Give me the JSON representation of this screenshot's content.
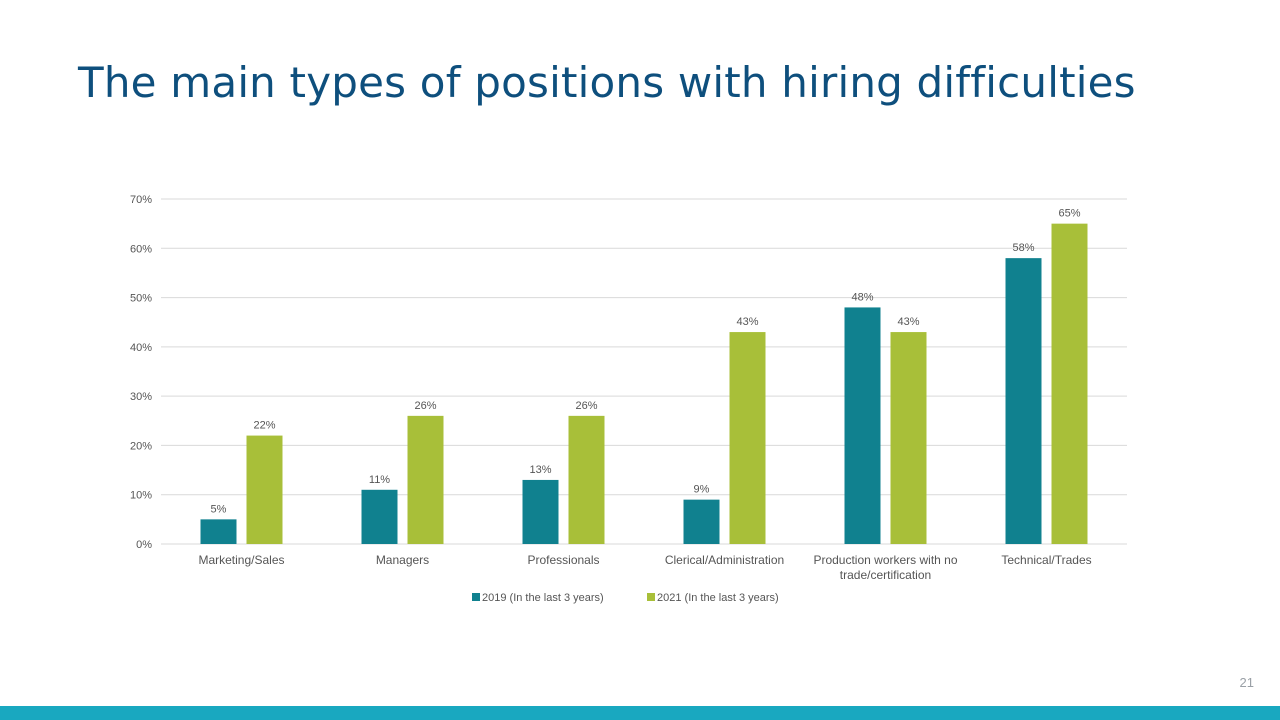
{
  "slide": {
    "title": "The main types of positions with hiring difficulties",
    "page_number": "21"
  },
  "colors": {
    "title": "#0e4f7d",
    "series_2019": "#10818f",
    "series_2021": "#a8bf39",
    "bottom_bar": "#19a8c0",
    "grid": "#d9d9d9"
  },
  "chart_data": {
    "type": "bar",
    "categories": [
      [
        "Marketing/Sales"
      ],
      [
        "Managers"
      ],
      [
        "Professionals"
      ],
      [
        "Clerical/Administration"
      ],
      [
        "Production workers with no",
        "trade/certification"
      ],
      [
        "Technical/Trades"
      ]
    ],
    "series": [
      {
        "name": "2019  (In the last 3 years)",
        "values": [
          5,
          11,
          13,
          9,
          48,
          58
        ],
        "labels": [
          "5%",
          "11%",
          "13%",
          "9%",
          "48%",
          "58%"
        ]
      },
      {
        "name": "2021  (In the last 3 years)",
        "values": [
          22,
          26,
          26,
          43,
          43,
          65
        ],
        "labels": [
          "22%",
          "26%",
          "26%",
          "43%",
          "43%",
          "65%"
        ]
      }
    ],
    "y_ticks": [
      "0%",
      "10%",
      "20%",
      "30%",
      "40%",
      "50%",
      "60%",
      "70%"
    ],
    "ylim": [
      0,
      70
    ],
    "grid": true,
    "legend_position": "bottom"
  }
}
